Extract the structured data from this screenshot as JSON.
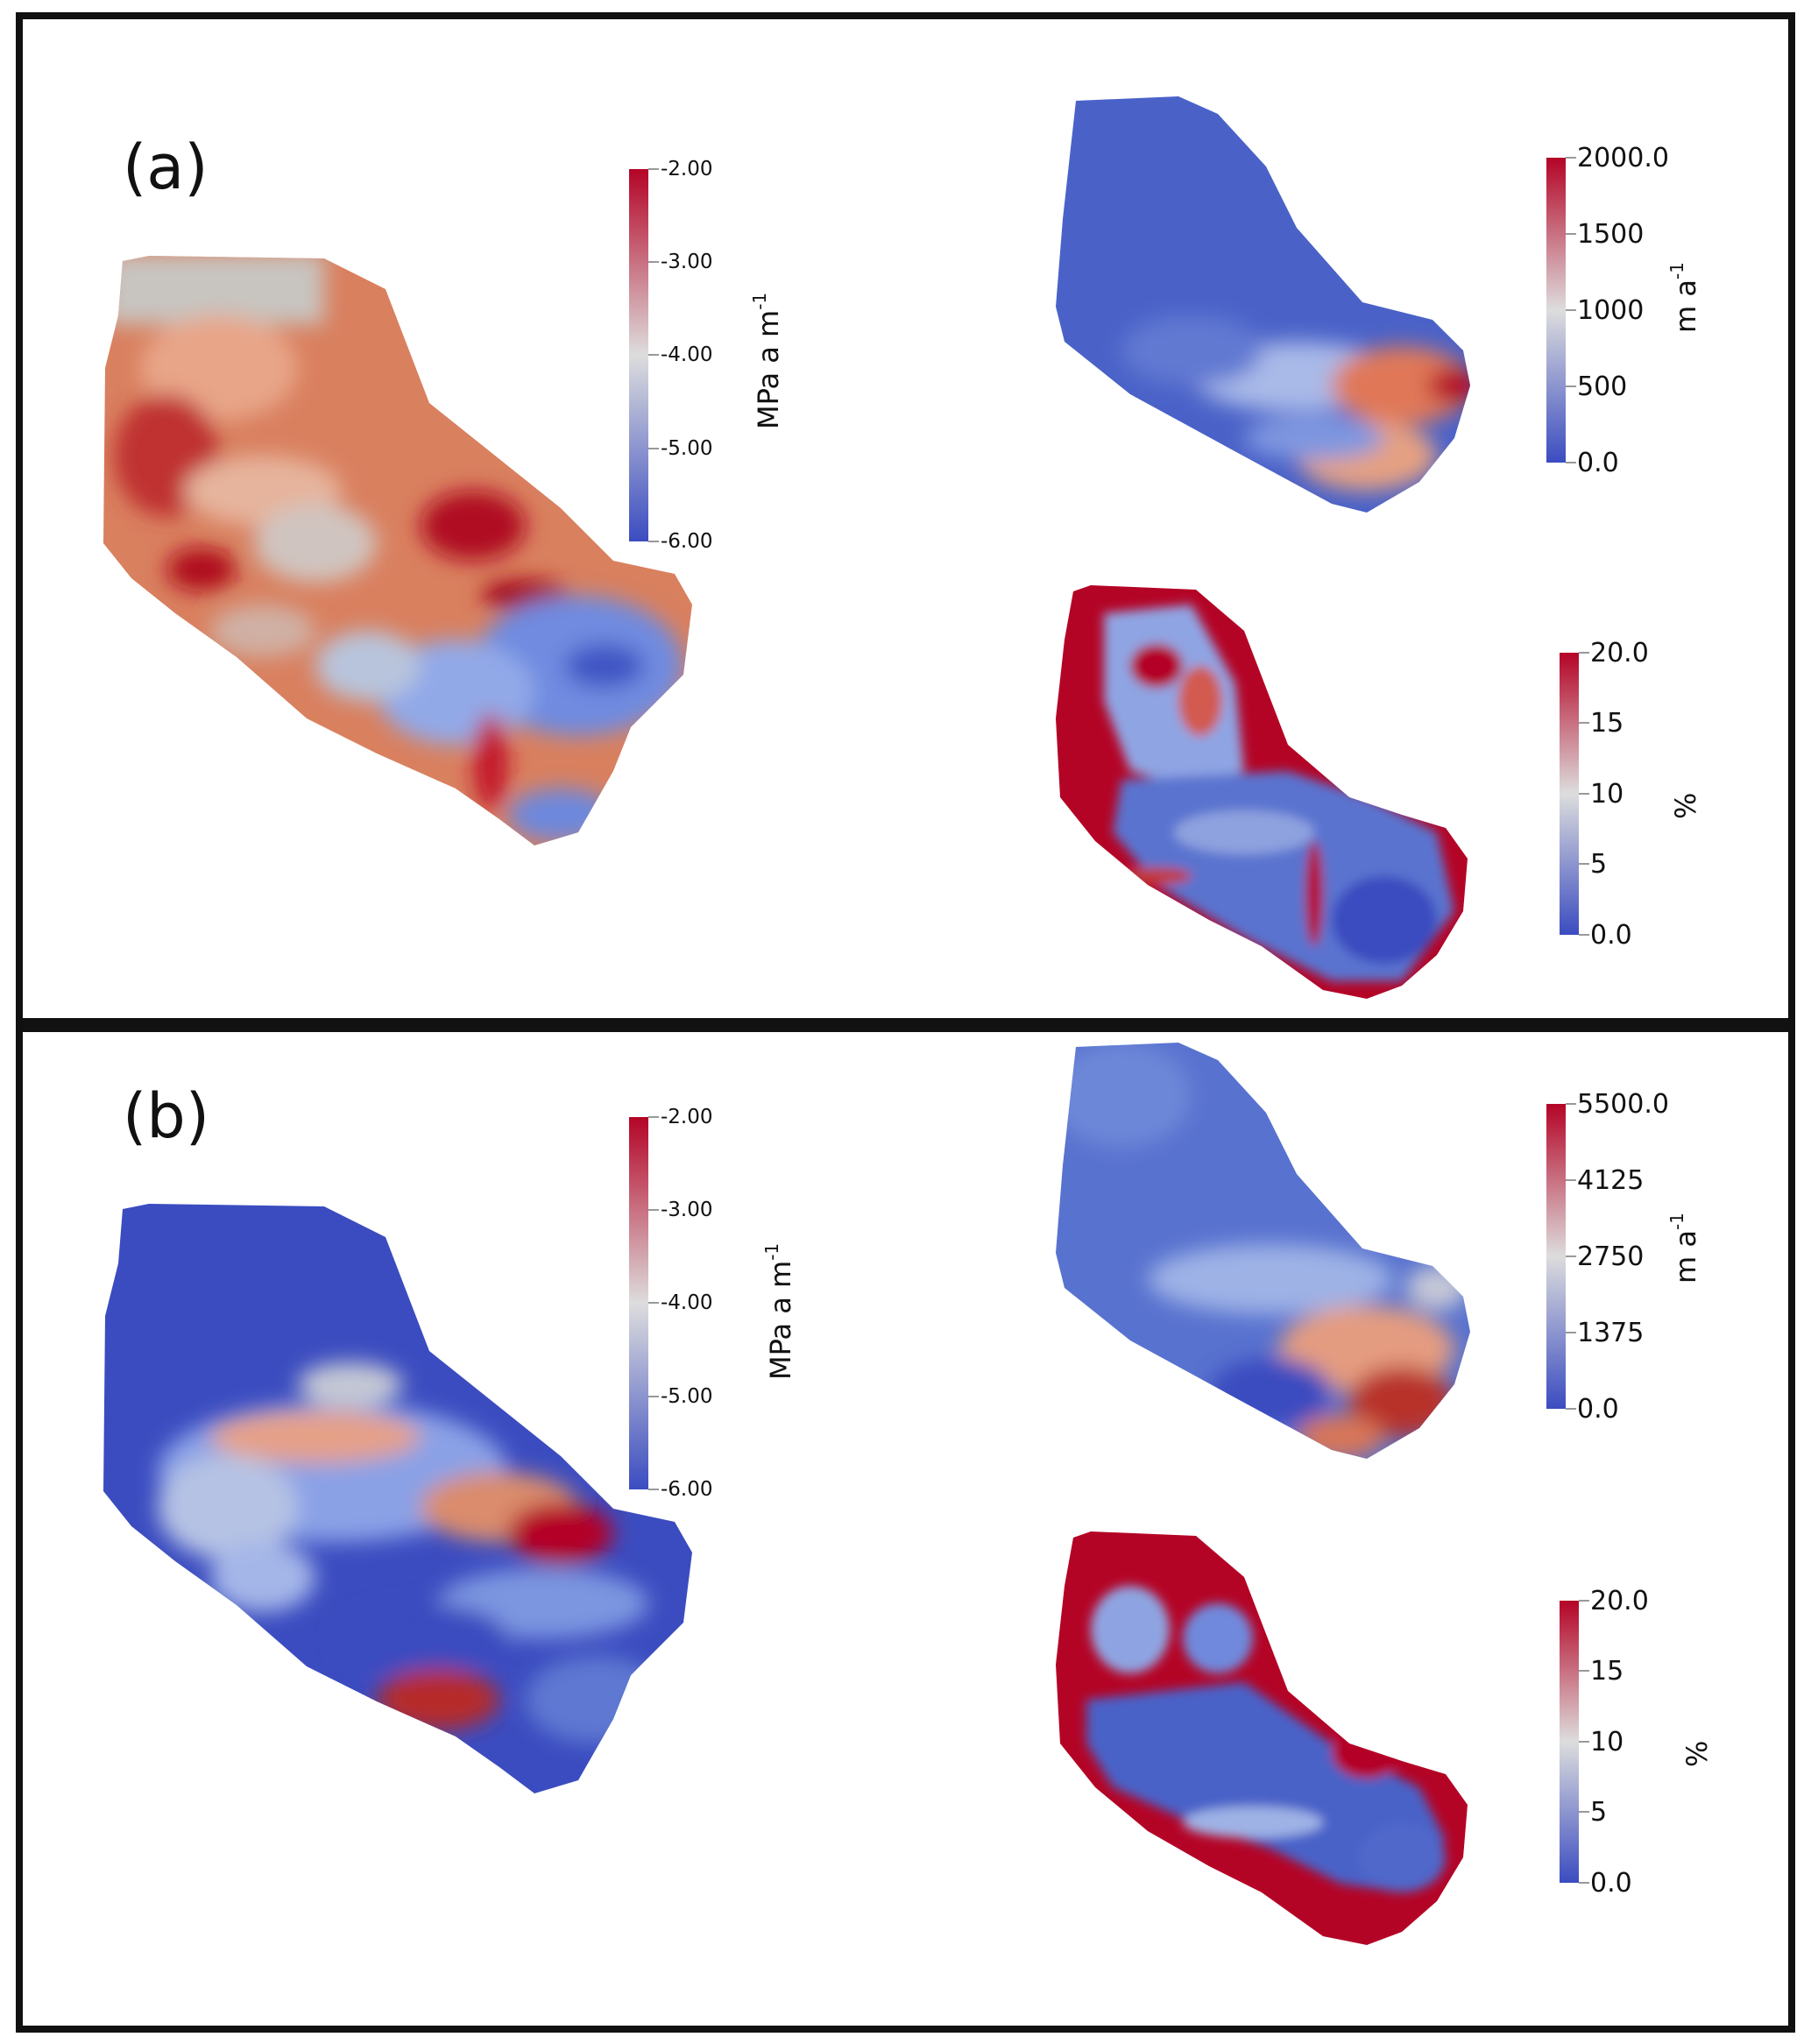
{
  "panels": [
    {
      "label": "(a)",
      "maps": [
        {
          "quantity": "basal-friction-coefficient",
          "colorbar": {
            "ticks": [
              "-2.00",
              "-3.00",
              "-4.00",
              "-5.00",
              "-6.00"
            ],
            "unit": "MPa a m",
            "unit_sup": "-1"
          }
        },
        {
          "quantity": "surface-velocity",
          "colorbar": {
            "ticks": [
              "2000.0",
              "1500",
              "1000",
              "500",
              "0.0"
            ],
            "unit": "m a",
            "unit_sup": "-1"
          }
        },
        {
          "quantity": "velocity-misfit",
          "colorbar": {
            "ticks": [
              "20.0",
              "15",
              "10",
              "5",
              "0.0"
            ],
            "unit": "%"
          }
        }
      ]
    },
    {
      "label": "(b)",
      "maps": [
        {
          "quantity": "basal-friction-coefficient",
          "colorbar": {
            "ticks": [
              "-2.00",
              "-3.00",
              "-4.00",
              "-5.00",
              "-6.00"
            ],
            "unit": "MPa a m",
            "unit_sup": "-1"
          }
        },
        {
          "quantity": "surface-velocity",
          "colorbar": {
            "ticks": [
              "5500.0",
              "4125",
              "2750",
              "1375",
              "0.0"
            ],
            "unit": "m a",
            "unit_sup": "-1"
          }
        },
        {
          "quantity": "velocity-misfit",
          "colorbar": {
            "ticks": [
              "20.0",
              "15",
              "10",
              "5",
              "0.0"
            ],
            "unit": "%"
          }
        }
      ]
    }
  ],
  "colormap": {
    "low": "#3b4cc0",
    "mid": "#dddddd",
    "high": "#b40426"
  }
}
